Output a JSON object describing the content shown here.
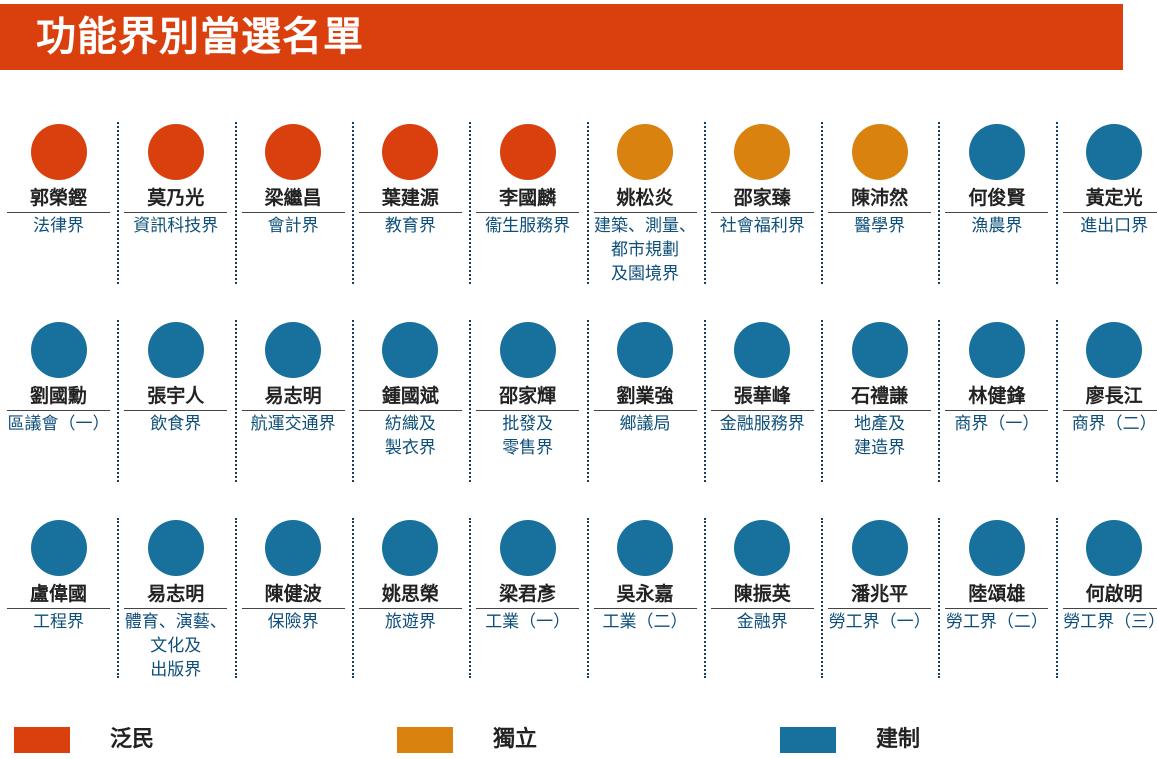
{
  "title": "功能界別當選名單",
  "colors": {
    "泛民": "#d9400d",
    "獨立": "#d9820f",
    "建制": "#17719c"
  },
  "legend": [
    {
      "label": "泛民",
      "color": "#d9400d"
    },
    {
      "label": "獨立",
      "color": "#d9820f"
    },
    {
      "label": "建制",
      "color": "#17719c"
    }
  ],
  "rows": [
    [
      {
        "name": "郭榮鏗",
        "sector": "法律界",
        "camp": "泛民"
      },
      {
        "name": "莫乃光",
        "sector": "資訊科技界",
        "camp": "泛民"
      },
      {
        "name": "梁繼昌",
        "sector": "會計界",
        "camp": "泛民"
      },
      {
        "name": "葉建源",
        "sector": "教育界",
        "camp": "泛民"
      },
      {
        "name": "李國麟",
        "sector": "衞生服務界",
        "camp": "泛民"
      },
      {
        "name": "姚松炎",
        "sector": "建築、測量、\n都市規劃\n及園境界",
        "camp": "獨立"
      },
      {
        "name": "邵家臻",
        "sector": "社會福利界",
        "camp": "獨立"
      },
      {
        "name": "陳沛然",
        "sector": "醫學界",
        "camp": "獨立"
      },
      {
        "name": "何俊賢",
        "sector": "漁農界",
        "camp": "建制"
      },
      {
        "name": "黃定光",
        "sector": "進出口界",
        "camp": "建制"
      }
    ],
    [
      {
        "name": "劉國勳",
        "sector": "區議會（一）",
        "camp": "建制"
      },
      {
        "name": "張宇人",
        "sector": "飲食界",
        "camp": "建制"
      },
      {
        "name": "易志明",
        "sector": "航運交通界",
        "camp": "建制"
      },
      {
        "name": "鍾國斌",
        "sector": "紡織及\n製衣界",
        "camp": "建制"
      },
      {
        "name": "邵家輝",
        "sector": "批發及\n零售界",
        "camp": "建制"
      },
      {
        "name": "劉業強",
        "sector": "鄉議局",
        "camp": "建制"
      },
      {
        "name": "張華峰",
        "sector": "金融服務界",
        "camp": "建制"
      },
      {
        "name": "石禮謙",
        "sector": "地產及\n建造界",
        "camp": "建制"
      },
      {
        "name": "林健鋒",
        "sector": "商界（一）",
        "camp": "建制"
      },
      {
        "name": "廖長江",
        "sector": "商界（二）",
        "camp": "建制"
      }
    ],
    [
      {
        "name": "盧偉國",
        "sector": "工程界",
        "camp": "建制"
      },
      {
        "name": "易志明",
        "sector": "體育、演藝、\n文化及\n出版界",
        "camp": "建制"
      },
      {
        "name": "陳健波",
        "sector": "保險界",
        "camp": "建制"
      },
      {
        "name": "姚思榮",
        "sector": "旅遊界",
        "camp": "建制"
      },
      {
        "name": "梁君彥",
        "sector": "工業（一）",
        "camp": "建制"
      },
      {
        "name": "吳永嘉",
        "sector": "工業（二）",
        "camp": "建制"
      },
      {
        "name": "陳振英",
        "sector": "金融界",
        "camp": "建制"
      },
      {
        "name": "潘兆平",
        "sector": "勞工界（一）",
        "camp": "建制"
      },
      {
        "name": "陸頌雄",
        "sector": "勞工界（二）",
        "camp": "建制"
      },
      {
        "name": "何啟明",
        "sector": "勞工界（三）",
        "camp": "建制"
      }
    ]
  ]
}
